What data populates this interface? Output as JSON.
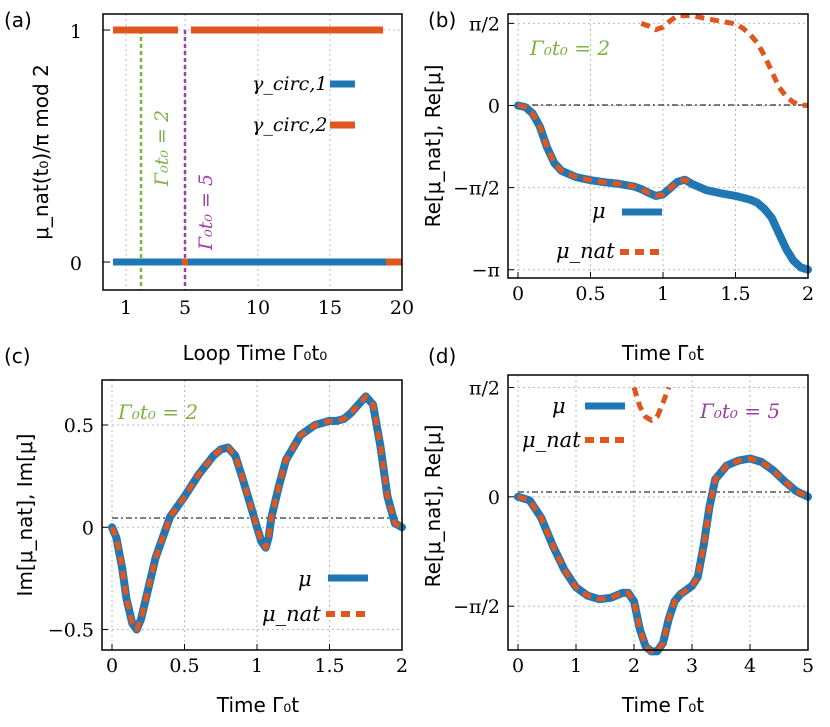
{
  "colors": {
    "blue": "#1f77b4",
    "orange": "#e0561f",
    "green": "#7cb342",
    "purple": "#9c3fa6",
    "grid": "#bbbbbb"
  },
  "chart_data": [
    {
      "panel": "(a)",
      "type": "line",
      "xlabel": "Loop Time Γ₀t₀",
      "ylabel": "μ_nat(t₀)/π mod 2",
      "xlim": [
        0,
        20
      ],
      "ylim": [
        -0.1,
        1.1
      ],
      "xticks": [
        1,
        5,
        10,
        15,
        20
      ],
      "yticks": [
        0,
        1
      ],
      "xtick_labels": [
        "1",
        "5",
        "10",
        "15",
        "20"
      ],
      "ytick_labels": [
        "0",
        "1"
      ],
      "legend_position": "center-right",
      "series": [
        {
          "name": "γ_circ,1",
          "color": "blue",
          "style": "solid",
          "x": [
            0.5,
            5.2,
            5.2,
            18.9
          ],
          "y": [
            0,
            0,
            0,
            0
          ]
        },
        {
          "name": "γ_circ,2",
          "color": "orange",
          "style": "solid",
          "x": [
            0.5,
            4.9,
            5.3,
            18.6,
            19.0,
            20
          ],
          "y": [
            1,
            1,
            1,
            1,
            0,
            0
          ]
        }
      ],
      "vlines": [
        {
          "x": 2,
          "label": "Γ₀t₀ = 2",
          "color": "green"
        },
        {
          "x": 5,
          "label": "Γ₀t₀ = 5",
          "color": "purple"
        }
      ]
    },
    {
      "panel": "(b)",
      "type": "line",
      "xlabel": "Time Γ₀t",
      "ylabel": "Re[μ_nat], Re[μ]",
      "xlim": [
        0,
        2
      ],
      "ylim": [
        -3.3,
        1.75
      ],
      "xticks": [
        0,
        0.5,
        1,
        1.5,
        2
      ],
      "xtick_labels": [
        "0",
        "0.5",
        "1",
        "1.5",
        "2"
      ],
      "yticks": [
        -3.1416,
        -1.5708,
        0,
        1.5708
      ],
      "ytick_labels": [
        "−π",
        "−π/2",
        "0",
        "π/2"
      ],
      "annotation": "Γ₀t₀ = 2",
      "legend_position": "lower-center",
      "series": [
        {
          "name": "μ",
          "color": "blue",
          "style": "solid",
          "x": [
            0,
            0.05,
            0.1,
            0.15,
            0.2,
            0.25,
            0.3,
            0.4,
            0.5,
            0.6,
            0.7,
            0.8,
            0.85,
            0.9,
            0.95,
            1.0,
            1.05,
            1.1,
            1.15,
            1.2,
            1.3,
            1.4,
            1.5,
            1.6,
            1.65,
            1.7,
            1.75,
            1.8,
            1.85,
            1.9,
            1.95,
            2.0
          ],
          "y": [
            0,
            -0.03,
            -0.15,
            -0.4,
            -0.8,
            -1.1,
            -1.25,
            -1.37,
            -1.43,
            -1.47,
            -1.5,
            -1.55,
            -1.6,
            -1.67,
            -1.73,
            -1.7,
            -1.58,
            -1.46,
            -1.42,
            -1.5,
            -1.62,
            -1.68,
            -1.73,
            -1.8,
            -1.86,
            -1.98,
            -2.15,
            -2.45,
            -2.75,
            -2.97,
            -3.1,
            -3.14
          ]
        },
        {
          "name": "μ_nat",
          "color": "orange",
          "style": "dashed",
          "x": [
            0,
            0.05,
            0.1,
            0.15,
            0.2,
            0.25,
            0.3,
            0.4,
            0.5,
            0.6,
            0.7,
            0.8,
            0.85,
            0.9,
            0.95,
            1.0,
            1.05,
            1.1,
            1.15,
            1.2
          ],
          "y": [
            0,
            -0.03,
            -0.15,
            -0.4,
            -0.8,
            -1.1,
            -1.25,
            -1.37,
            -1.43,
            -1.47,
            -1.5,
            -1.55,
            -1.6,
            -1.67,
            -1.73,
            -1.7,
            -1.58,
            -1.46,
            -1.42,
            -1.5
          ]
        },
        {
          "name": "",
          "color": "orange",
          "style": "dashed",
          "x": [
            0.85,
            0.9,
            0.95,
            1.0,
            1.05,
            1.1,
            1.2,
            1.3,
            1.4,
            1.5,
            1.55,
            1.6,
            1.65,
            1.7,
            1.75,
            1.8,
            1.85,
            1.9,
            1.95,
            2.0
          ],
          "y": [
            1.5708,
            1.52,
            1.45,
            1.5,
            1.62,
            1.72,
            1.72,
            1.66,
            1.61,
            1.56,
            1.48,
            1.36,
            1.2,
            0.95,
            0.65,
            0.35,
            0.17,
            0.06,
            0.01,
            0
          ]
        }
      ]
    },
    {
      "panel": "(c)",
      "type": "line",
      "xlabel": "Time Γ₀t",
      "ylabel": "Im[μ_nat], Im[μ]",
      "xlim": [
        0,
        2
      ],
      "ylim": [
        -0.6,
        0.72
      ],
      "xticks": [
        0,
        0.5,
        1,
        1.5,
        2
      ],
      "xtick_labels": [
        "0",
        "0.5",
        "1",
        "1.5",
        "2"
      ],
      "yticks": [
        -0.5,
        0,
        0.5
      ],
      "ytick_labels": [
        "−0.5",
        "0",
        "0.5"
      ],
      "annotation": "Γ₀t₀ = 2",
      "legend_position": "lower-right",
      "series": [
        {
          "name": "μ",
          "color": "blue",
          "style": "solid",
          "x": [
            0,
            0.03,
            0.07,
            0.1,
            0.14,
            0.17,
            0.2,
            0.25,
            0.3,
            0.4,
            0.5,
            0.6,
            0.7,
            0.75,
            0.8,
            0.85,
            0.9,
            0.95,
            1.0,
            1.03,
            1.06,
            1.08,
            1.1,
            1.15,
            1.2,
            1.3,
            1.4,
            1.5,
            1.55,
            1.6,
            1.65,
            1.7,
            1.75,
            1.8,
            1.85,
            1.9,
            1.95,
            2.0
          ],
          "y": [
            0,
            -0.05,
            -0.2,
            -0.35,
            -0.47,
            -0.5,
            -0.45,
            -0.3,
            -0.15,
            0.05,
            0.15,
            0.26,
            0.35,
            0.38,
            0.39,
            0.35,
            0.24,
            0.12,
            0.0,
            -0.07,
            -0.1,
            -0.05,
            0.05,
            0.2,
            0.33,
            0.45,
            0.5,
            0.52,
            0.52,
            0.53,
            0.56,
            0.6,
            0.64,
            0.6,
            0.4,
            0.15,
            0.02,
            0
          ]
        },
        {
          "name": "μ_nat",
          "color": "orange",
          "style": "dashed",
          "x": [
            0,
            0.03,
            0.07,
            0.1,
            0.14,
            0.17,
            0.2,
            0.25,
            0.3,
            0.4,
            0.5,
            0.6,
            0.7,
            0.75,
            0.8,
            0.85,
            0.9,
            0.95,
            1.0,
            1.03,
            1.06,
            1.08,
            1.1,
            1.15,
            1.2,
            1.3,
            1.4,
            1.5,
            1.55,
            1.6,
            1.65,
            1.7,
            1.75,
            1.8,
            1.85,
            1.9,
            1.95,
            2.0
          ],
          "y": [
            0,
            -0.05,
            -0.2,
            -0.35,
            -0.47,
            -0.5,
            -0.45,
            -0.3,
            -0.15,
            0.05,
            0.15,
            0.26,
            0.35,
            0.38,
            0.39,
            0.35,
            0.24,
            0.12,
            0.0,
            -0.07,
            -0.1,
            -0.05,
            0.05,
            0.2,
            0.33,
            0.45,
            0.5,
            0.52,
            0.52,
            0.53,
            0.56,
            0.6,
            0.64,
            0.6,
            0.4,
            0.15,
            0.02,
            0
          ]
        }
      ]
    },
    {
      "panel": "(d)",
      "type": "line",
      "xlabel": "Time Γ₀t",
      "ylabel": "Re[μ_nat], Re[μ]",
      "xlim": [
        0,
        5
      ],
      "ylim": [
        -2.2,
        1.75
      ],
      "xticks": [
        0,
        1,
        2,
        3,
        4,
        5
      ],
      "xtick_labels": [
        "0",
        "1",
        "2",
        "3",
        "4",
        "5"
      ],
      "yticks": [
        -1.5708,
        0,
        1.5708
      ],
      "ytick_labels": [
        "−π/2",
        "0",
        "π/2"
      ],
      "annotation": "Γ₀t₀ = 5",
      "legend_position": "top-left",
      "series": [
        {
          "name": "μ",
          "color": "blue",
          "style": "solid",
          "x": [
            0,
            0.2,
            0.4,
            0.6,
            0.8,
            1.0,
            1.2,
            1.4,
            1.6,
            1.8,
            1.9,
            2.0,
            2.1,
            2.2,
            2.3,
            2.4,
            2.5,
            2.6,
            2.7,
            2.8,
            2.9,
            3.0,
            3.1,
            3.2,
            3.3,
            3.4,
            3.6,
            3.8,
            4.0,
            4.2,
            4.4,
            4.6,
            4.8,
            5.0
          ],
          "y": [
            0,
            -0.05,
            -0.3,
            -0.7,
            -1.05,
            -1.3,
            -1.42,
            -1.47,
            -1.45,
            -1.38,
            -1.38,
            -1.5,
            -1.9,
            -2.15,
            -2.22,
            -2.22,
            -2.1,
            -1.75,
            -1.5,
            -1.4,
            -1.34,
            -1.28,
            -1.15,
            -0.7,
            -0.15,
            0.25,
            0.45,
            0.52,
            0.55,
            0.5,
            0.38,
            0.22,
            0.08,
            0
          ]
        },
        {
          "name": "μ_nat",
          "color": "orange",
          "style": "dashed",
          "x": [
            0,
            0.2,
            0.4,
            0.6,
            0.8,
            1.0,
            1.2,
            1.4,
            1.6,
            1.8,
            1.9,
            2.0,
            2.1,
            2.2,
            2.3,
            2.4,
            2.5,
            2.6,
            2.7,
            2.8,
            2.9,
            3.0,
            3.1,
            3.2,
            3.3,
            3.4,
            3.6,
            3.8,
            4.0,
            4.2,
            4.4,
            4.6,
            4.8,
            5.0
          ],
          "y": [
            0,
            -0.05,
            -0.3,
            -0.7,
            -1.05,
            -1.3,
            -1.42,
            -1.47,
            -1.45,
            -1.38,
            -1.38,
            -1.5,
            -1.9,
            -2.15,
            -2.22,
            -2.22,
            -2.1,
            -1.75,
            -1.5,
            -1.4,
            -1.34,
            -1.28,
            -1.15,
            -0.7,
            -0.15,
            0.25,
            0.45,
            0.52,
            0.55,
            0.5,
            0.38,
            0.22,
            0.08,
            0
          ]
        },
        {
          "name": "",
          "color": "orange",
          "style": "dashed",
          "x": [
            2.0,
            2.1,
            2.2,
            2.3,
            2.4,
            2.5,
            2.6
          ],
          "y": [
            1.5708,
            1.3,
            1.15,
            1.1,
            1.15,
            1.35,
            1.5708
          ]
        }
      ]
    }
  ]
}
